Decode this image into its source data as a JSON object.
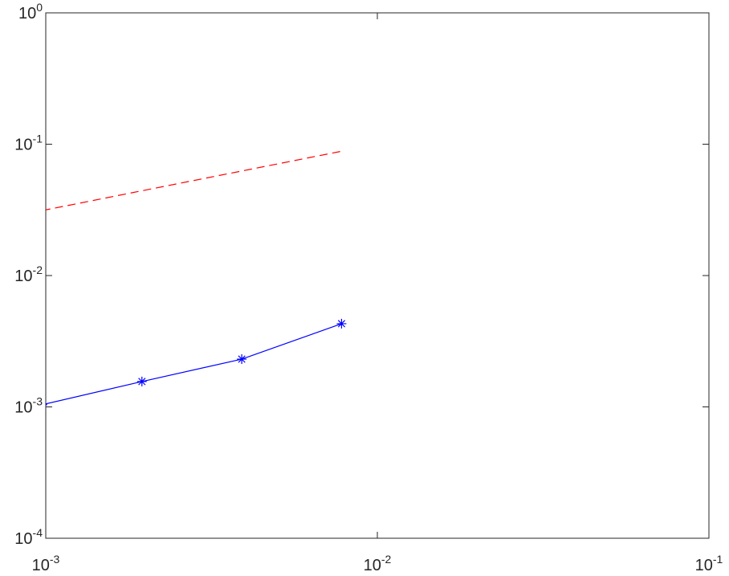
{
  "chart_data": {
    "type": "line",
    "xscale": "log",
    "yscale": "log",
    "x": [
      0.000977,
      0.00195,
      0.0039,
      0.0078
    ],
    "series": [
      {
        "color": "#0000ff",
        "values": [
          0.00104,
          0.00156,
          0.00231,
          0.0043
        ],
        "linestyle": "solid",
        "marker": "asterisk"
      },
      {
        "color": "#ff0000",
        "values": [
          0.03125,
          0.0442,
          0.0625,
          0.0884
        ],
        "linestyle": "dashed",
        "marker": "none"
      }
    ],
    "xlim": [
      0.001,
      0.1
    ],
    "xticks": [
      {
        "value": 0.001,
        "label": "10^-3"
      },
      {
        "value": 0.01,
        "label": "10^-2"
      },
      {
        "value": 0.1,
        "label": "10^-1"
      }
    ],
    "ylim": [
      0.0001,
      1
    ],
    "yticks": [
      {
        "value": 0.0001,
        "label": "10^-4"
      },
      {
        "value": 0.001,
        "label": "10^-3"
      },
      {
        "value": 0.01,
        "label": "10^-2"
      },
      {
        "value": 0.1,
        "label": "10^-1"
      },
      {
        "value": 1,
        "label": "10^0"
      }
    ],
    "grid": false
  }
}
